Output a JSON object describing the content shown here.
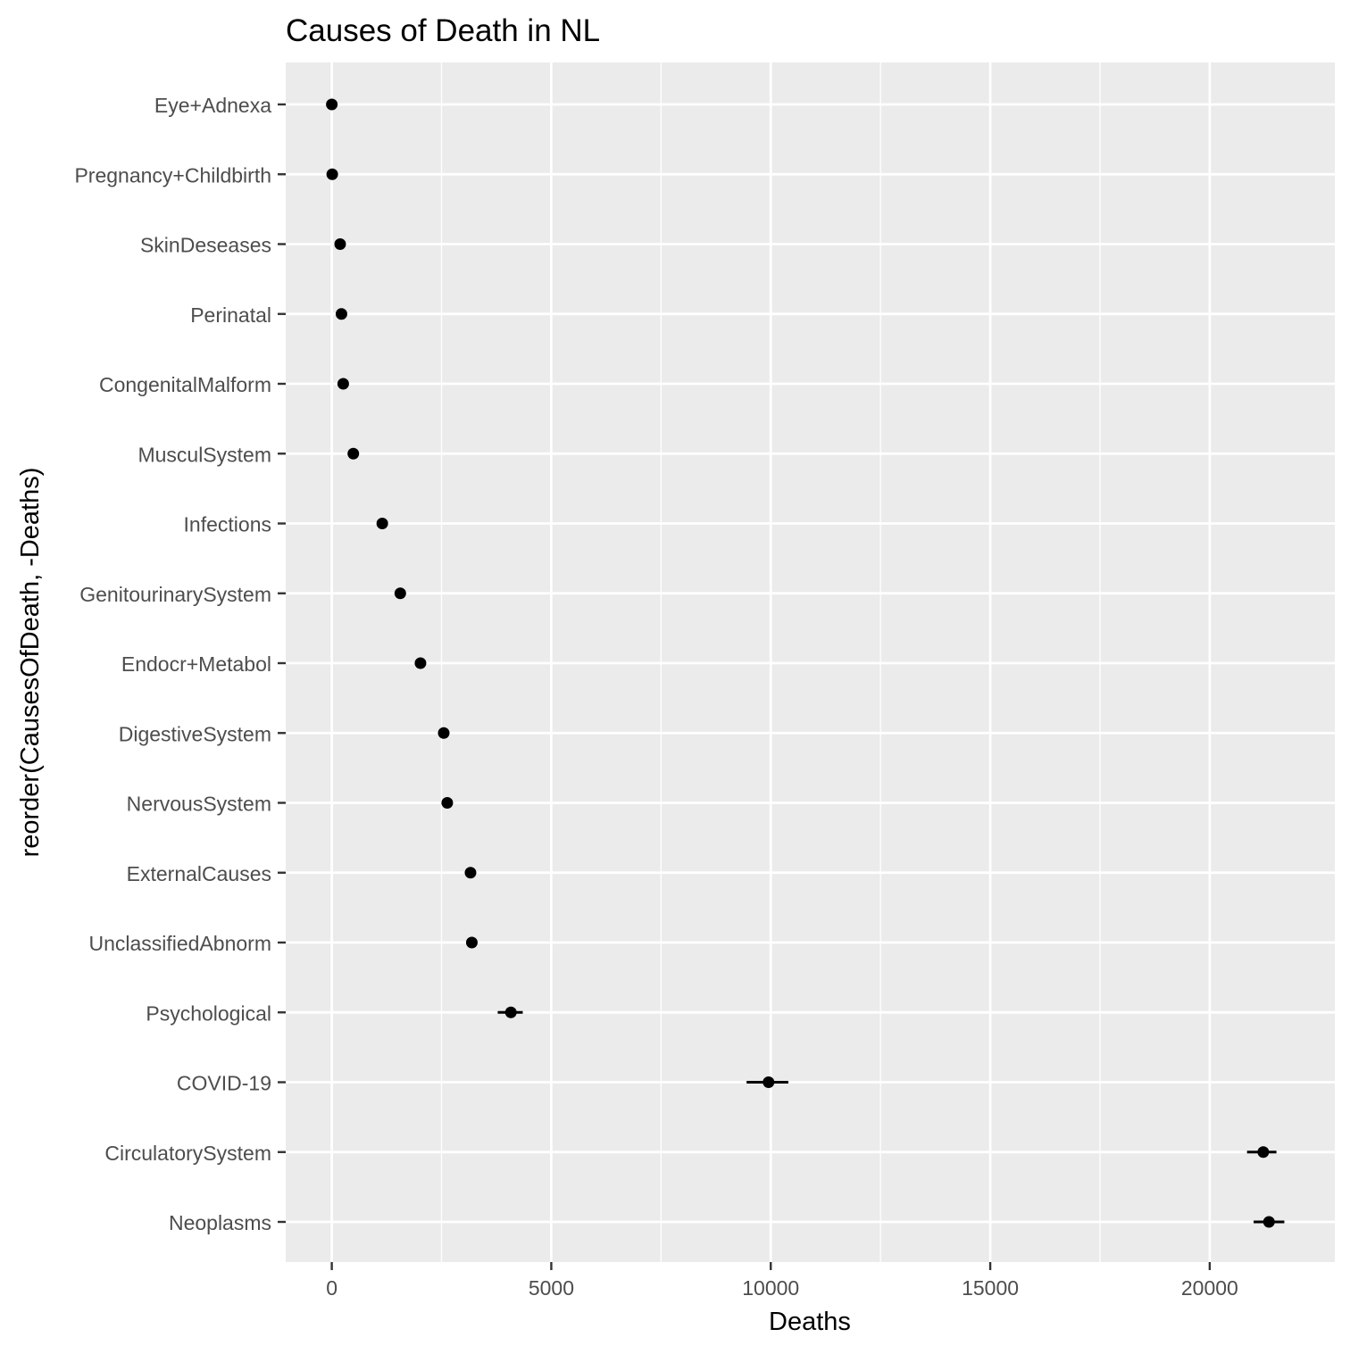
{
  "chart_data": {
    "type": "scatter",
    "title": "Causes of Death in NL",
    "xlabel": "Deaths",
    "ylabel": "reorder(CausesOfDeath, -Deaths)",
    "xlim": [
      -1050,
      22850
    ],
    "x_major_ticks": [
      0,
      5000,
      10000,
      15000,
      20000
    ],
    "x_minor_ticks": [
      2500,
      7500,
      12500,
      17500
    ],
    "grid": true,
    "legend": "none",
    "colors": {
      "panel_background": "#ebebeb",
      "grid_line": "#ffffff",
      "point": "#000000",
      "axis_text": "#4d4d4d",
      "title_text": "#000000"
    },
    "categories": [
      "Eye+Adnexa",
      "Pregnancy+Childbirth",
      "SkinDeseases",
      "Perinatal",
      "CongenitalMalform",
      "MusculSystem",
      "Infections",
      "GenitourinarySystem",
      "Endocr+Metabol",
      "DigestiveSystem",
      "NervousSystem",
      "ExternalCauses",
      "UnclassifiedAbnorm",
      "Psychological",
      "COVID-19",
      "CirculatorySystem",
      "Neoplasms"
    ],
    "values": [
      0,
      10,
      190,
      220,
      260,
      490,
      1150,
      1560,
      2020,
      2550,
      2630,
      3160,
      3190,
      4080,
      9950,
      21220,
      21350
    ],
    "error_low": [
      0,
      10,
      190,
      220,
      260,
      490,
      1150,
      1560,
      2020,
      2550,
      2630,
      3160,
      3190,
      3780,
      9450,
      20850,
      21000
    ],
    "error_high": [
      0,
      10,
      190,
      220,
      260,
      490,
      1150,
      1560,
      2020,
      2550,
      2630,
      3160,
      3190,
      4350,
      10400,
      21520,
      21700
    ]
  }
}
